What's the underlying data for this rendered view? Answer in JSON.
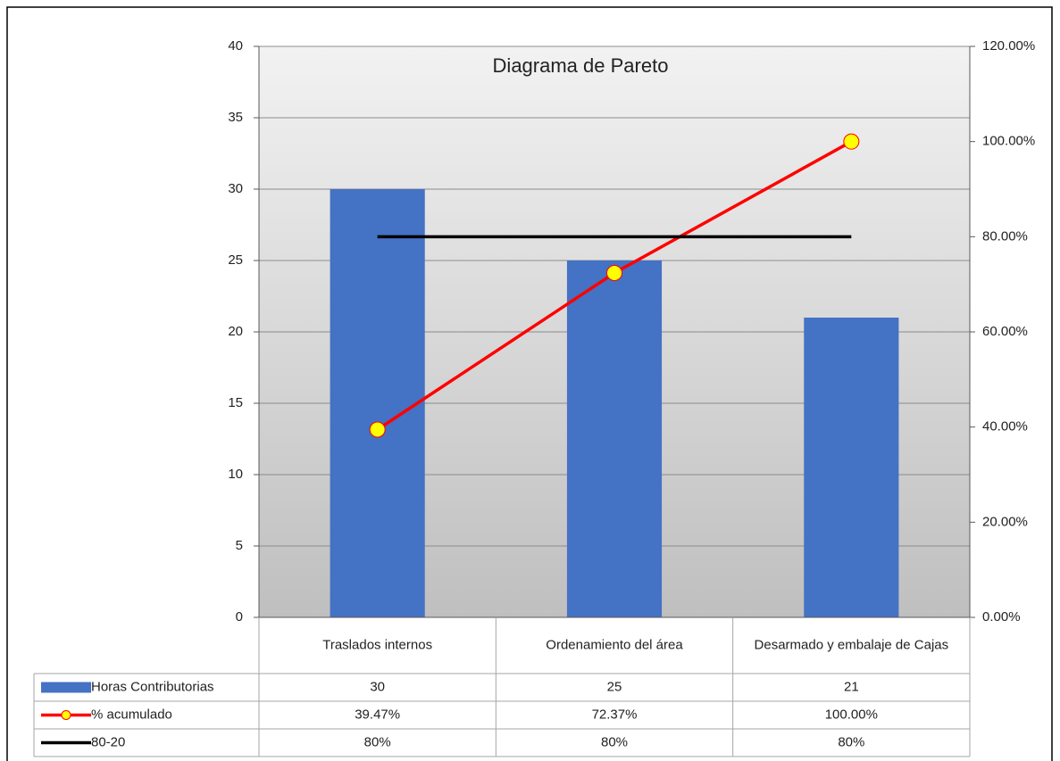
{
  "chart_data": {
    "type": "pareto",
    "title": "Diagrama de Pareto",
    "categories": [
      "Traslados internos",
      "Ordenamiento del área",
      "Desarmado y embalaje de Cajas"
    ],
    "series": [
      {
        "name": "Horas Contributorias",
        "color": "#4472c4",
        "kind": "bar",
        "values": [
          30,
          25,
          21
        ]
      },
      {
        "name": "% acumulado",
        "color": "#ff0000",
        "marker_color": "#ffff00",
        "kind": "line",
        "axis": "y2",
        "values": [
          39.47,
          72.37,
          100
        ],
        "value_labels": [
          "39.47%",
          "72.37%",
          "100.00%"
        ]
      },
      {
        "name": "80-20",
        "color": "#000000",
        "kind": "line",
        "axis": "y2",
        "values": [
          80,
          80,
          80
        ],
        "value_labels": [
          "80%",
          "80%",
          "80%"
        ]
      }
    ],
    "ylim": [
      0,
      40
    ],
    "yticks": [
      0,
      5,
      10,
      15,
      20,
      25,
      30,
      35,
      40
    ],
    "y2lim": [
      0,
      120
    ],
    "y2ticks": [
      {
        "value": 0,
        "label": "0.00%"
      },
      {
        "value": 20,
        "label": "20.00%"
      },
      {
        "value": 40,
        "label": "40.00%"
      },
      {
        "value": 60,
        "label": "60.00%"
      },
      {
        "value": 80,
        "label": "80.00%"
      },
      {
        "value": 100,
        "label": "100.00%"
      },
      {
        "value": 120,
        "label": "120.00%"
      }
    ],
    "grid": true,
    "data_table": true
  }
}
